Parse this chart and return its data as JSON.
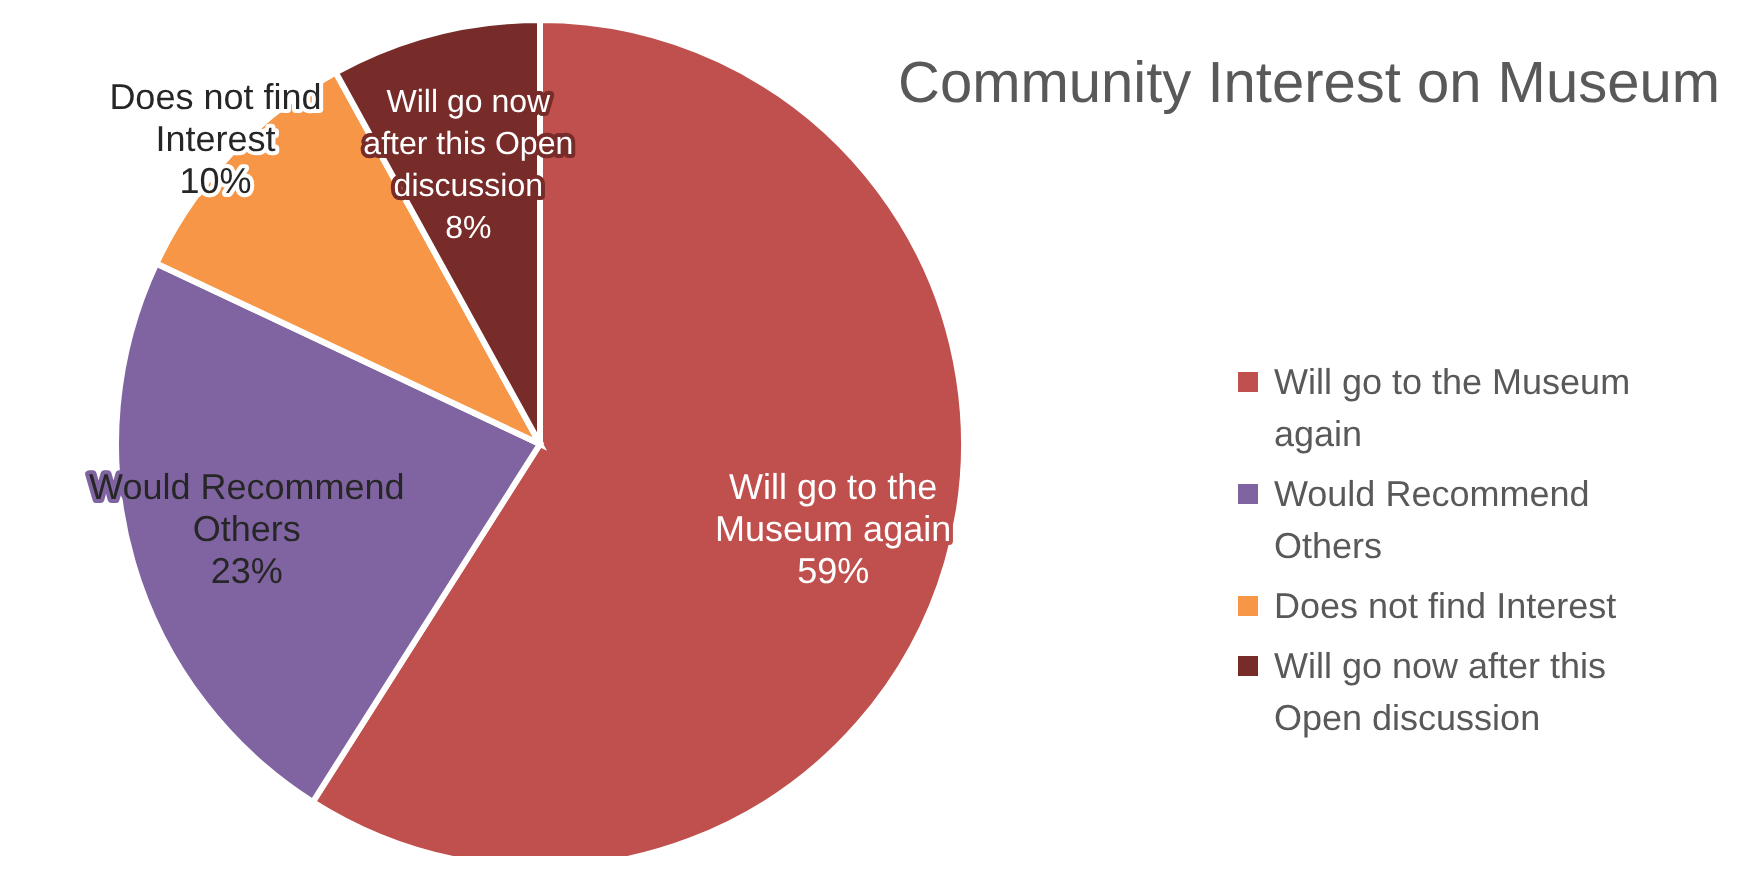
{
  "chart_data": {
    "type": "pie",
    "title": "Community Interest on Museum",
    "categories": [
      "Will go to the Museum again",
      "Would Recommend Others",
      "Does not find Interest",
      "Will go now after this Open discussion"
    ],
    "values": [
      59,
      23,
      10,
      8
    ],
    "colors": [
      "#c0504d",
      "#8064a2",
      "#f79646",
      "#772c2a"
    ],
    "value_labels": [
      "59%",
      "23%",
      "10%",
      "8%"
    ],
    "legend": "right"
  }
}
